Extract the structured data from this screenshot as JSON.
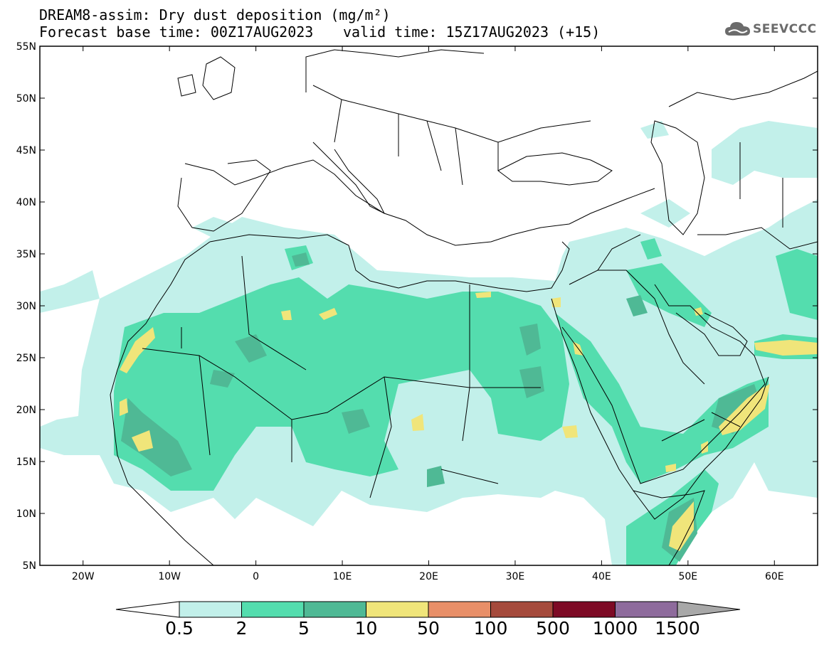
{
  "header": {
    "title_line1": "DREAM8-assim: Dry dust deposition (mg/m²)",
    "forecast_base": "Forecast base time: 00Z17AUG2023",
    "valid_time": "valid time: 15Z17AUG2023 (+15)"
  },
  "logo": {
    "text": "SEEVCCC",
    "icon": "cloud-icon"
  },
  "map": {
    "projection": "lat-lon",
    "lon_range": [
      -25,
      65
    ],
    "lat_range": [
      5,
      55
    ],
    "lat_labels": [
      "5N",
      "10N",
      "15N",
      "20N",
      "25N",
      "30N",
      "35N",
      "40N",
      "45N",
      "50N",
      "55N"
    ],
    "lon_labels": [
      "20W",
      "10W",
      "0",
      "10E",
      "20E",
      "30E",
      "40E",
      "50E",
      "60E"
    ]
  },
  "colorbar": {
    "levels": [
      "0.5",
      "2",
      "5",
      "10",
      "50",
      "100",
      "500",
      "1000",
      "1500"
    ],
    "colors": [
      "#c2f0ea",
      "#54ddae",
      "#4fb995",
      "#f0e57a",
      "#e88f68",
      "#a54a3c",
      "#7d0a25",
      "#8e6b9c"
    ],
    "low_arrow_color": "#ffffff",
    "high_arrow_color": "#a8a8a8"
  }
}
